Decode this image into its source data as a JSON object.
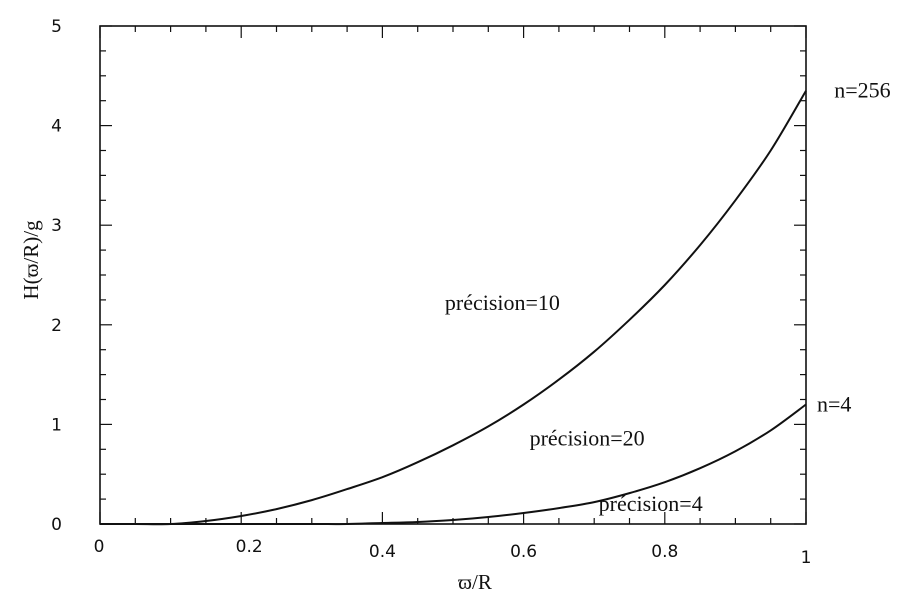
{
  "chart_data": {
    "type": "line",
    "title": "",
    "xlabel": "ϖ/R",
    "ylabel": "H(ϖ/R)/g",
    "xlim": [
      0,
      1
    ],
    "ylim": [
      0,
      5
    ],
    "x_ticks": [
      "0",
      "0.2",
      "0.4",
      "0.6",
      "0.8",
      "1"
    ],
    "y_ticks": [
      "0",
      "1",
      "2",
      "3",
      "4",
      "5"
    ],
    "grid": false,
    "series": [
      {
        "name": "n=256",
        "x": [
          0.0,
          0.05,
          0.1,
          0.15,
          0.2,
          0.25,
          0.3,
          0.35,
          0.4,
          0.45,
          0.5,
          0.55,
          0.6,
          0.65,
          0.7,
          0.75,
          0.8,
          0.85,
          0.9,
          0.95,
          1.0
        ],
        "y": [
          0.0,
          0.0,
          0.0,
          0.03,
          0.08,
          0.15,
          0.24,
          0.35,
          0.47,
          0.62,
          0.79,
          0.98,
          1.2,
          1.45,
          1.73,
          2.05,
          2.4,
          2.8,
          3.25,
          3.75,
          4.35
        ]
      },
      {
        "name": "n=4",
        "x": [
          0.0,
          0.1,
          0.2,
          0.3,
          0.35,
          0.4,
          0.45,
          0.5,
          0.55,
          0.6,
          0.65,
          0.7,
          0.75,
          0.8,
          0.85,
          0.9,
          0.95,
          1.0
        ],
        "y": [
          0.0,
          0.0,
          0.0,
          0.0,
          0.0,
          0.01,
          0.02,
          0.04,
          0.07,
          0.11,
          0.16,
          0.22,
          0.31,
          0.42,
          0.56,
          0.73,
          0.94,
          1.2
        ]
      }
    ],
    "annotations": [
      {
        "text": "précision=10",
        "x": 0.57,
        "y": 2.22
      },
      {
        "text": "précision=20",
        "x": 0.69,
        "y": 0.86
      },
      {
        "text": "précision=4",
        "x": 0.78,
        "y": 0.2
      },
      {
        "text": "n=256",
        "x": 1.08,
        "y": 4.35
      },
      {
        "text": "n=4",
        "x": 1.04,
        "y": 1.2
      }
    ]
  }
}
